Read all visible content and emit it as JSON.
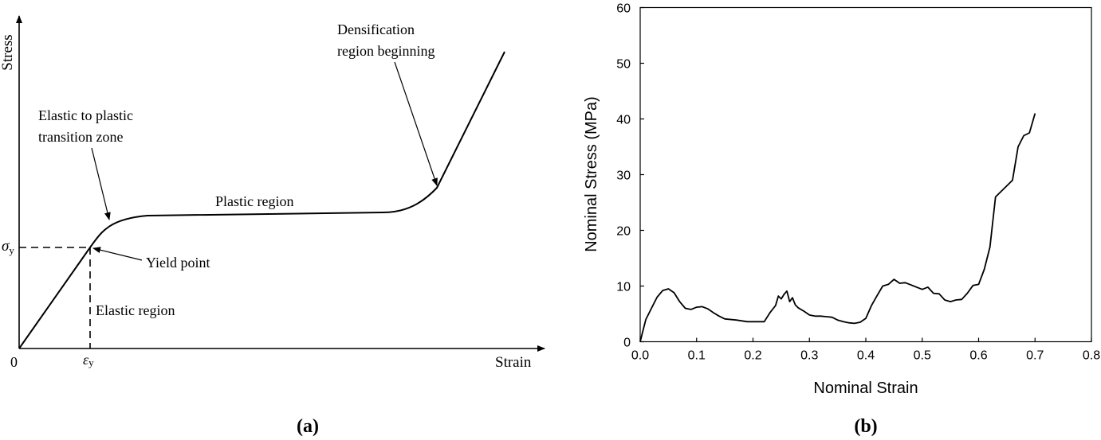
{
  "panel_a": {
    "caption": "(a)",
    "xlabel": "Strain",
    "ylabel": "Stress",
    "origin_label": "0",
    "sigma_y": {
      "main": "σ",
      "sub": "y"
    },
    "eps_y": {
      "main": "ε",
      "sub": "y"
    },
    "annotations": {
      "densification_1": "Densification",
      "densification_2": "region beginning",
      "transition_1": "Elastic  to  plastic",
      "transition_2": "transition zone",
      "plastic": "Plastic region",
      "yield": "Yield point",
      "elastic": "Elastic region"
    }
  },
  "panel_b": {
    "caption": "(b)",
    "xlabel": "Nominal Strain",
    "ylabel": "Nominal Stress (MPa)"
  },
  "chart_data": [
    {
      "panel": "a",
      "type": "line",
      "xlabel": "Strain",
      "ylabel": "Stress",
      "x_tick_labels": [
        "0",
        "εy"
      ],
      "y_tick_labels": [
        "σy"
      ],
      "annotations": [
        "Densification region beginning",
        "Elastic to plastic transition zone",
        "Plastic region",
        "Yield point",
        "Elastic region"
      ],
      "grid": false
    },
    {
      "panel": "b",
      "type": "line",
      "xlabel": "Nominal Strain",
      "ylabel": "Nominal Stress (MPa)",
      "xlim": [
        0,
        0.8
      ],
      "ylim": [
        0,
        60
      ],
      "x_ticks": [
        "0.0",
        "0.1",
        "0.2",
        "0.3",
        "0.4",
        "0.5",
        "0.6",
        "0.7",
        "0.8"
      ],
      "y_ticks": [
        "0",
        "10",
        "20",
        "30",
        "40",
        "50",
        "60"
      ],
      "grid": false,
      "series": [
        {
          "x": [
            0,
            0.005,
            0.01,
            0.02,
            0.03,
            0.04,
            0.05,
            0.06,
            0.07,
            0.08,
            0.09,
            0.1,
            0.11,
            0.12,
            0.13,
            0.14,
            0.15,
            0.17,
            0.19,
            0.21,
            0.22,
            0.23,
            0.24,
            0.245,
            0.25,
            0.255,
            0.26,
            0.265,
            0.27,
            0.275,
            0.28,
            0.29,
            0.3,
            0.31,
            0.32,
            0.33,
            0.34,
            0.35,
            0.36,
            0.37,
            0.38,
            0.39,
            0.4,
            0.41,
            0.42,
            0.43,
            0.44,
            0.45,
            0.46,
            0.47,
            0.48,
            0.49,
            0.5,
            0.51,
            0.52,
            0.53,
            0.54,
            0.55,
            0.56,
            0.57,
            0.58,
            0.59,
            0.6,
            0.61,
            0.62,
            0.63,
            0.64,
            0.65,
            0.66,
            0.67,
            0.68,
            0.69,
            0.7
          ],
          "y": [
            0,
            2,
            4,
            6,
            8,
            9.2,
            9.5,
            8.8,
            7.2,
            6.0,
            5.8,
            6.2,
            6.3,
            5.9,
            5.2,
            4.6,
            4.1,
            3.9,
            3.6,
            3.6,
            3.6,
            5.2,
            6.5,
            8.2,
            7.7,
            8.5,
            9.1,
            7.2,
            7.9,
            6.6,
            6.1,
            5.5,
            4.8,
            4.6,
            4.6,
            4.5,
            4.4,
            3.9,
            3.6,
            3.4,
            3.3,
            3.5,
            4.2,
            6.5,
            8.3,
            10.0,
            10.3,
            11.2,
            10.5,
            10.6,
            10.2,
            9.8,
            9.4,
            9.8,
            8.7,
            8.6,
            7.5,
            7.2,
            7.5,
            7.6,
            8.7,
            10.1,
            10.3,
            13.0,
            17.0,
            26.0,
            27.0,
            28.0,
            29.0,
            35.0,
            37.0,
            37.5,
            41.0
          ]
        }
      ]
    }
  ]
}
